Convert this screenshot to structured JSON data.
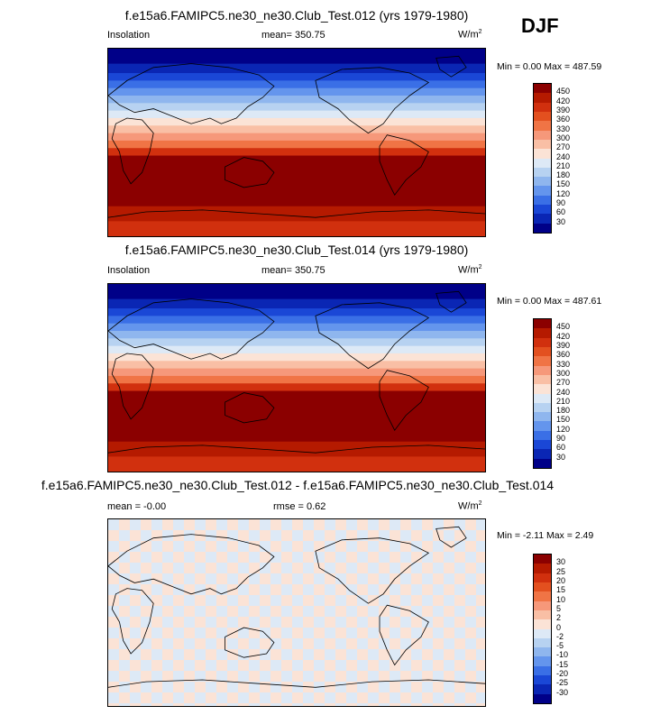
{
  "season": "DJF",
  "panels": [
    {
      "title": "f.e15a6.FAMIPC5.ne30_ne30.Club_Test.012 (yrs 1979-1980)",
      "left_label": "Insolation",
      "center_label": "mean= 350.75",
      "units": "W/m",
      "units_sup": "2",
      "min_max": "Min =  0.00 Max = 487.59",
      "colorbar_ticks": [
        "450",
        "420",
        "390",
        "360",
        "330",
        "300",
        "270",
        "240",
        "210",
        "180",
        "150",
        "120",
        "90",
        "60",
        "30"
      ]
    },
    {
      "title": "f.e15a6.FAMIPC5.ne30_ne30.Club_Test.014 (yrs 1979-1980)",
      "left_label": "Insolation",
      "center_label": "mean= 350.75",
      "units": "W/m",
      "units_sup": "2",
      "min_max": "Min =  0.00 Max = 487.61",
      "colorbar_ticks": [
        "450",
        "420",
        "390",
        "360",
        "330",
        "300",
        "270",
        "240",
        "210",
        "180",
        "150",
        "120",
        "90",
        "60",
        "30"
      ]
    },
    {
      "title": "f.e15a6.FAMIPC5.ne30_ne30.Club_Test.012 - f.e15a6.FAMIPC5.ne30_ne30.Club_Test.014",
      "left_label": "mean =  -0.00",
      "center_label": "rmse =   0.62",
      "units": "W/m",
      "units_sup": "2",
      "min_max": "Min = -2.11 Max =   2.49",
      "colorbar_ticks": [
        "30",
        "25",
        "20",
        "15",
        "10",
        "5",
        "2",
        "0",
        "-2",
        "-5",
        "-10",
        "-15",
        "-20",
        "-25",
        "-30"
      ]
    }
  ],
  "colors": {
    "insolation_scale": [
      "#8b0000",
      "#b51a00",
      "#d1300e",
      "#e3501f",
      "#f07445",
      "#f6987a",
      "#f9bfa5",
      "#fbe3d6",
      "#dde9f6",
      "#b7d2f1",
      "#8fb6ee",
      "#6495ed",
      "#3a6fe6",
      "#1a47d6",
      "#0a26b4",
      "#000088"
    ],
    "difference_scale": [
      "#8b0000",
      "#b51a00",
      "#d1300e",
      "#e3501f",
      "#f07445",
      "#f6987a",
      "#f9bfa5",
      "#fbe3d6",
      "#dde9f6",
      "#b7d2f1",
      "#8fb6ee",
      "#6495ed",
      "#3a6fe6",
      "#1a47d6",
      "#0a26b4",
      "#000088"
    ]
  }
}
